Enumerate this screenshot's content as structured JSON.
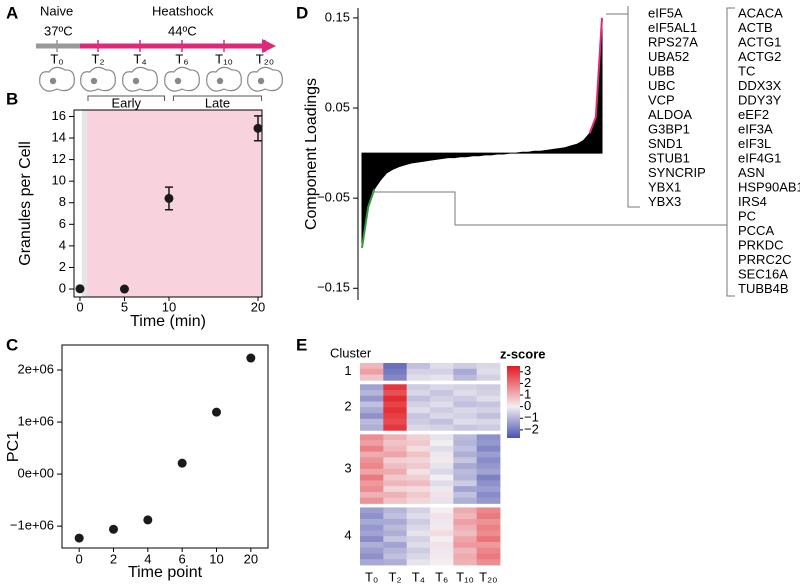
{
  "panel_labels": [
    "A",
    "B",
    "C",
    "D",
    "E"
  ],
  "timeline": {
    "phases": [
      {
        "label": "Naive",
        "temp": "37ºC"
      },
      {
        "label": "Heatshock",
        "temp": "44ºC"
      }
    ],
    "timepoints": [
      "T₀",
      "T₂",
      "T₄",
      "T₆",
      "T₁₀",
      "T₂₀"
    ]
  },
  "chart_data": [
    {
      "type": "scatter",
      "xlabel": "Time (min)",
      "ylabel": "Granules per Cell",
      "color": "#1a1a1a",
      "x": [
        0,
        5,
        10,
        20
      ],
      "values": [
        0.02,
        0,
        8.4,
        14.9
      ],
      "errors": [
        0,
        0,
        1.05,
        1.15
      ],
      "xlim": [
        -0.67,
        20.45
      ],
      "ylim": [
        -0.74,
        16.6
      ],
      "xticks": [
        0,
        5,
        10,
        20
      ],
      "yticks": [
        0,
        2,
        4,
        6,
        8,
        10,
        12,
        14,
        16
      ],
      "shaded_regions": [
        {
          "range": [
            0.2,
            0.8
          ],
          "color": "#e4e4e4"
        },
        {
          "range": [
            0.8,
            20.45
          ],
          "color": "#f8d3de"
        }
      ],
      "brackets": [
        {
          "label": "Early",
          "range": [
            0.9,
            9.5
          ]
        },
        {
          "label": "Late",
          "range": [
            10.5,
            20.4
          ]
        }
      ]
    },
    {
      "type": "scatter",
      "xlabel": "Time point",
      "ylabel": "PC1",
      "color": "#1a1a1a",
      "categories": [
        "0",
        "2",
        "4",
        "6",
        "10",
        "20"
      ],
      "values": [
        -1230000,
        -1060000,
        -880000,
        210000,
        1190000,
        2230000
      ],
      "ylim": [
        -1420000,
        2480000
      ],
      "yticks": [
        {
          "value": -1000000,
          "label": "−1e+06"
        },
        {
          "value": 0,
          "label": "0e+00"
        },
        {
          "value": 1000000,
          "label": "1e+06"
        },
        {
          "value": 2000000,
          "label": "2e+06"
        }
      ]
    },
    {
      "type": "area",
      "ylabel": "Component Loadings",
      "values": [
        -0.105,
        -0.06,
        -0.04,
        -0.03,
        -0.022,
        -0.018,
        -0.015,
        -0.013,
        -0.011,
        -0.01,
        -0.009,
        -0.008,
        -0.007,
        -0.006,
        -0.005,
        -0.005,
        -0.004,
        -0.004,
        -0.003,
        -0.003,
        -0.002,
        -0.002,
        -0.001,
        -0.001,
        0,
        0,
        0.001,
        0.001,
        0.002,
        0.002,
        0.003,
        0.004,
        0.005,
        0.006,
        0.008,
        0.01,
        0.014,
        0.022,
        0.04,
        0.15
      ],
      "ylim": [
        -0.163,
        0.161
      ],
      "yticks": [
        0.15,
        0.05,
        {
          "value": -0.05,
          "label": "−0.05"
        },
        {
          "value": -0.15,
          "label": "−0.15"
        }
      ],
      "colors": {
        "main": "#000000",
        "negative": "#2e9a3c",
        "positive": "#e0287a"
      },
      "positive_genes": [
        "eIF5A",
        "eIF5AL1",
        "RPS27A",
        "UBA52",
        "UBB",
        "UBC",
        "VCP",
        "ALDOA",
        "G3BP1",
        "SND1",
        "STUB1",
        "SYNCRIP",
        "YBX1",
        "YBX3"
      ],
      "negative_genes": [
        "ACACA",
        "ACTB",
        "ACTG1",
        "ACTG2",
        "TC",
        "DDX3X",
        "DDY3Y",
        "eEF2",
        "eIF3A",
        "eIF3L",
        "eIF4G1",
        "ASN",
        "HSP90AB1",
        "IRS4",
        "PC",
        "PCCA",
        "PRKDC",
        "PRRC2C",
        "SEC16A",
        "TUBB4B"
      ]
    },
    {
      "type": "heatmap",
      "cluster_title": "Cluster",
      "legend_title": "z-score",
      "categories": [
        "T₀",
        "T₂",
        "T₄",
        "T₆",
        "T₁₀",
        "T₂₀"
      ],
      "zlim": [
        -2.7,
        3.5
      ],
      "zticks": [
        3,
        2,
        1,
        0,
        {
          "value": -1,
          "label": "−1"
        },
        {
          "value": -2,
          "label": "−2"
        }
      ],
      "colors": {
        "low": "#4a53b0",
        "mid": "#f3eef1",
        "high": "#e3191f"
      },
      "clusters": [
        {
          "label": "1",
          "rows": [
            [
              0.9,
              -2.2,
              -0.8,
              -0.3,
              -0.6,
              -0.4
            ],
            [
              1.3,
              -2.0,
              -0.5,
              -0.5,
              -1.2,
              -0.3
            ],
            [
              0.7,
              -1.8,
              -0.3,
              -0.2,
              -0.9,
              -0.5
            ]
          ]
        },
        {
          "label": "2",
          "rows": [
            [
              -1.3,
              3.0,
              -0.6,
              -0.4,
              -0.5,
              -0.6
            ],
            [
              -1.0,
              2.6,
              -0.4,
              -0.7,
              -0.3,
              -0.5
            ],
            [
              -1.5,
              3.2,
              -0.8,
              -0.5,
              -0.6,
              -0.3
            ],
            [
              -0.8,
              2.8,
              -0.5,
              -0.3,
              -0.8,
              -0.7
            ],
            [
              -1.2,
              3.1,
              -0.3,
              -0.6,
              -0.4,
              -0.5
            ],
            [
              -1.6,
              2.9,
              -0.7,
              -0.4,
              -0.5,
              -0.8
            ],
            [
              -0.9,
              2.7,
              -0.6,
              -0.8,
              -0.3,
              -0.4
            ],
            [
              -1.1,
              3.0,
              -0.4,
              -0.5,
              -0.7,
              -0.6
            ]
          ]
        },
        {
          "label": "3",
          "rows": [
            [
              1.6,
              1.0,
              0.5,
              -0.2,
              -0.9,
              -1.6
            ],
            [
              1.3,
              0.7,
              0.6,
              0.0,
              -1.0,
              -1.5
            ],
            [
              1.8,
              0.9,
              0.3,
              -0.3,
              -0.8,
              -1.8
            ],
            [
              1.1,
              1.2,
              0.7,
              -0.1,
              -1.1,
              -1.4
            ],
            [
              1.5,
              0.5,
              0.4,
              0.1,
              -0.7,
              -1.7
            ],
            [
              1.7,
              0.8,
              0.6,
              -0.2,
              -1.2,
              -1.5
            ],
            [
              1.2,
              1.1,
              0.2,
              -0.4,
              -0.9,
              -1.3
            ],
            [
              1.9,
              0.6,
              0.5,
              0.0,
              -1.0,
              -1.9
            ],
            [
              1.4,
              0.9,
              0.8,
              -0.3,
              -0.6,
              -1.6
            ],
            [
              1.6,
              0.4,
              0.3,
              -0.1,
              -1.3,
              -1.4
            ],
            [
              1.0,
              1.0,
              0.6,
              0.2,
              -0.8,
              -1.7
            ],
            [
              1.5,
              0.7,
              0.4,
              -0.2,
              -1.1,
              -1.5
            ]
          ]
        },
        {
          "label": "4",
          "rows": [
            [
              -1.4,
              -1.0,
              -0.5,
              0.0,
              1.1,
              1.7
            ],
            [
              -1.6,
              -0.8,
              -0.3,
              0.2,
              0.9,
              1.9
            ],
            [
              -1.2,
              -1.2,
              -0.6,
              -0.1,
              1.3,
              1.5
            ],
            [
              -1.5,
              -0.9,
              -0.4,
              0.1,
              1.0,
              1.8
            ],
            [
              -1.3,
              -1.1,
              -0.2,
              0.3,
              0.8,
              1.6
            ],
            [
              -1.7,
              -0.7,
              -0.5,
              0.0,
              1.2,
              2.0
            ],
            [
              -1.1,
              -1.3,
              -0.3,
              0.2,
              1.4,
              1.4
            ],
            [
              -1.4,
              -1.0,
              -0.6,
              -0.1,
              0.9,
              1.7
            ],
            [
              -1.6,
              -0.8,
              -0.4,
              0.1,
              1.1,
              1.9
            ],
            [
              -1.2,
              -1.1,
              -0.2,
              0.0,
              1.0,
              1.6
            ]
          ]
        }
      ]
    }
  ]
}
